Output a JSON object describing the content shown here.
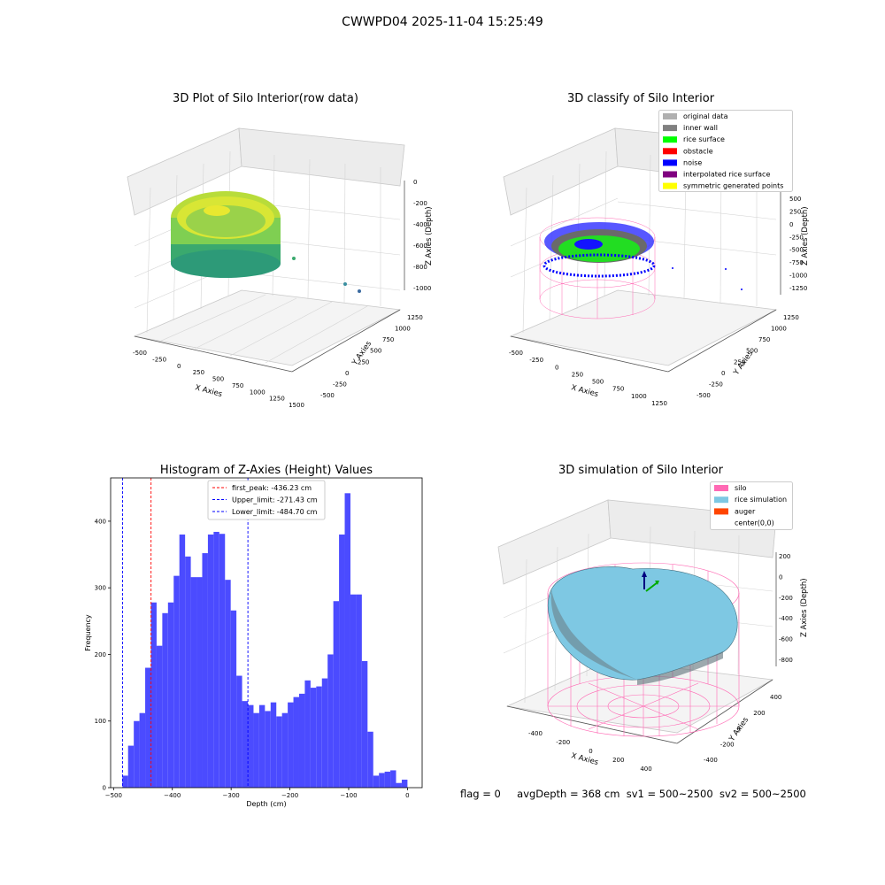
{
  "suptitle": "CWWPD04 2025-11-04 15:25:49",
  "bottom_note": {
    "flag": "flag = 0",
    "avg": "avgDepth = 368 cm",
    "sv1": "sv1 = 500~2500",
    "sv2": "sv2 = 500~2500"
  },
  "colors": {
    "hist_bar": "#4b4bff",
    "first_peak": "#ff0000",
    "limit": "#0000ff",
    "silo": "#ff69b4",
    "rice_sim": "#7ec8e3",
    "auger": "#ff4500"
  },
  "chart_data": [
    {
      "type": "scatter3d",
      "title": "3D Plot of Silo Interior(row data)",
      "xlabel": "X Axies",
      "ylabel": "Y Axies",
      "zlabel": "Z Axies (Depth)",
      "x_ticks": [
        "-500",
        "-250",
        "0",
        "250",
        "500",
        "750",
        "1000",
        "1250",
        "1500"
      ],
      "y_ticks": [
        "-500",
        "-250",
        "0",
        "250",
        "500",
        "750",
        "1000",
        "1250"
      ],
      "z_ticks": [
        "0",
        "-200",
        "-400",
        "-600",
        "-800",
        "-1000"
      ]
    },
    {
      "type": "scatter3d",
      "title": "3D classify of Silo Interior",
      "xlabel": "X Axies",
      "ylabel": "Y Axies",
      "zlabel": "Z Axies (Depth)",
      "x_ticks": [
        "-500",
        "-250",
        "0",
        "250",
        "500",
        "750",
        "1000",
        "1250"
      ],
      "y_ticks": [
        "-500",
        "-250",
        "0",
        "250",
        "500",
        "750",
        "1000",
        "1250"
      ],
      "z_ticks": [
        "500",
        "250",
        "0",
        "-250",
        "-500",
        "-750",
        "-1000",
        "-1250"
      ],
      "legend_position": "top-right",
      "legend": [
        {
          "label": "original data",
          "color": "#b0b0b0"
        },
        {
          "label": "inner wall",
          "color": "#808080"
        },
        {
          "label": "rice surface",
          "color": "#00ff00"
        },
        {
          "label": "obstacle",
          "color": "#ff0000"
        },
        {
          "label": "noise",
          "color": "#0000ff"
        },
        {
          "label": "interpolated rice surface",
          "color": "#800080"
        },
        {
          "label": "symmetric generated points",
          "color": "#ffff00"
        }
      ]
    },
    {
      "type": "bar",
      "title": "Histogram of Z-Axies (Height) Values",
      "xlabel": "Depth (cm)",
      "ylabel": "Frequency",
      "xlim": [
        -505,
        25
      ],
      "ylim": [
        0,
        465
      ],
      "x_ticks": [
        -500,
        -400,
        -300,
        -200,
        -100,
        0
      ],
      "y_ticks": [
        0,
        100,
        200,
        300,
        400
      ],
      "bin_start": -485,
      "bin_width": 9.7,
      "values": [
        18,
        63,
        100,
        112,
        180,
        278,
        213,
        262,
        278,
        318,
        380,
        347,
        316,
        316,
        352,
        380,
        384,
        381,
        312,
        266,
        168,
        130,
        124,
        112,
        124,
        115,
        128,
        107,
        112,
        128,
        136,
        141,
        161,
        150,
        152,
        164,
        200,
        280,
        380,
        442,
        290,
        290,
        190,
        84,
        18,
        22,
        24,
        26,
        7,
        12
      ],
      "lines": [
        {
          "label": "first_peak: -436.23 cm",
          "x": -436.23,
          "kind": "first_peak"
        },
        {
          "label": "Upper_limit: -271.43 cm",
          "x": -271.43,
          "kind": "limit"
        },
        {
          "label": "Lower_limit: -484.70 cm",
          "x": -484.7,
          "kind": "limit"
        }
      ],
      "legend_position": "top-center"
    },
    {
      "type": "surface3d",
      "title": "3D simulation of Silo Interior",
      "xlabel": "X Axies",
      "ylabel": "Y Axies",
      "zlabel": "Z Axies (Depth)",
      "x_ticks": [
        "-400",
        "-200",
        "0",
        "200",
        "400"
      ],
      "y_ticks": [
        "-400",
        "-200",
        "0",
        "200",
        "400"
      ],
      "z_ticks": [
        "200",
        "0",
        "-200",
        "-400",
        "-600",
        "-800"
      ],
      "legend_position": "top-right",
      "legend": [
        {
          "label": "silo",
          "color": "#ff69b4"
        },
        {
          "label": "rice simulation",
          "color": "#7ec8e3"
        },
        {
          "label": "auger",
          "color": "#ff4500"
        },
        {
          "label": "center(0,0)",
          "color": "none"
        }
      ]
    }
  ]
}
